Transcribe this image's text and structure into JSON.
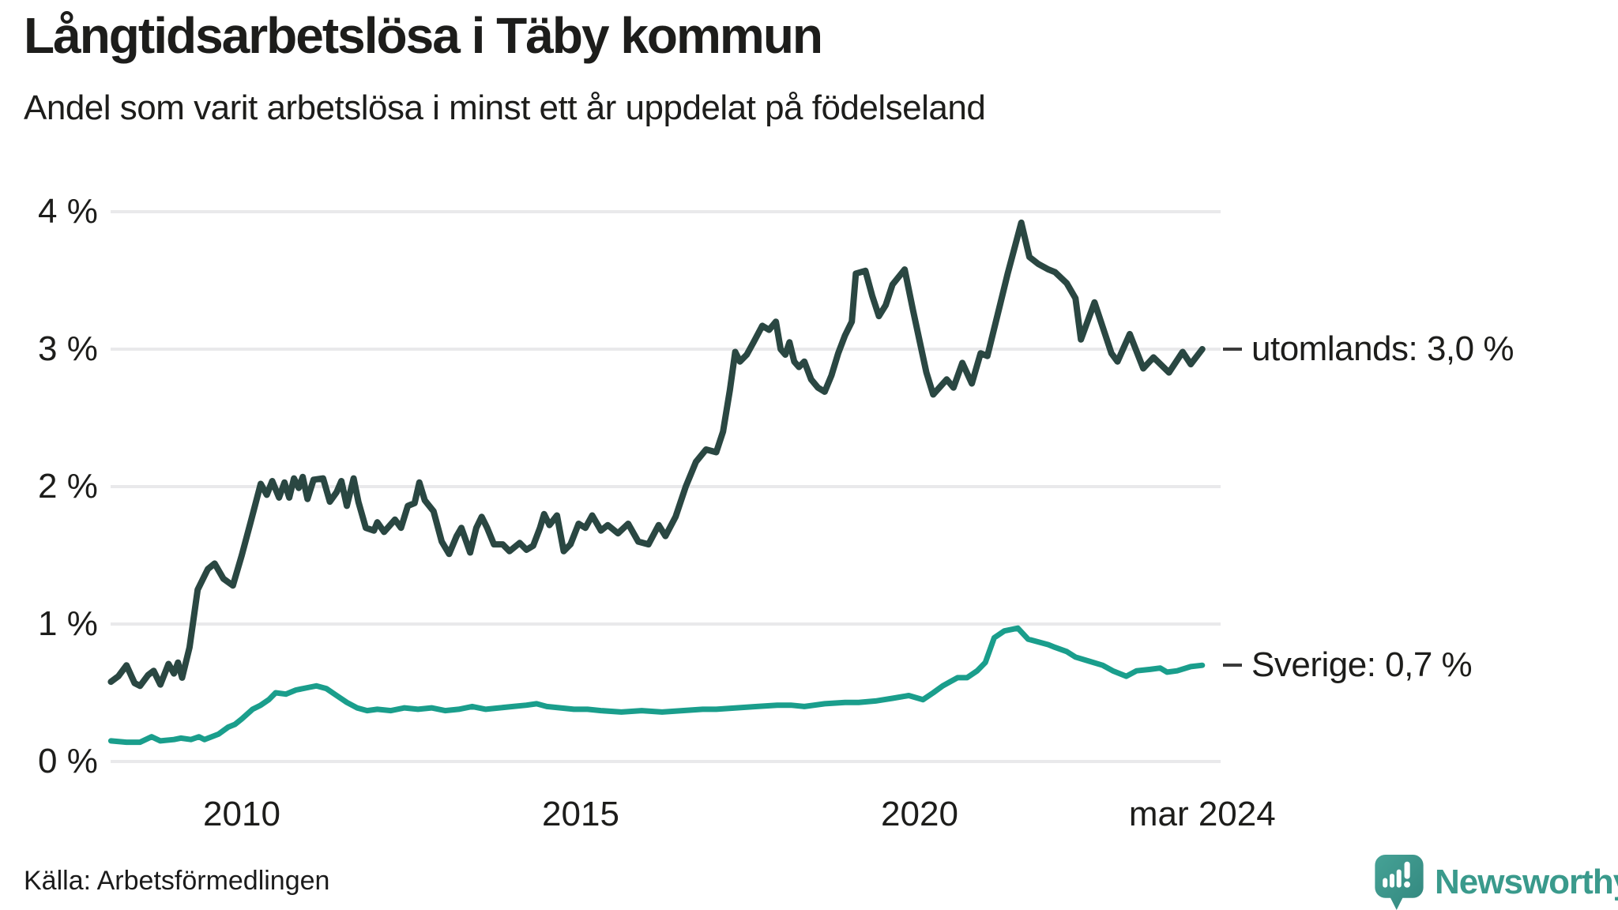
{
  "header": {
    "title": "Långtidsarbetslösa i Täby kommun",
    "subtitle": "Andel som varit arbetslösa i minst ett år uppdelat på födelseland"
  },
  "footer": {
    "source": "Källa: Arbetsförmedlingen",
    "brand": "Newsworthy"
  },
  "colors": {
    "background": "#ffffff",
    "text": "#1d1d1b",
    "gridline": "#e9e9eb",
    "utomlands_line": "#2a4742",
    "sverige_line": "#1a9e8c",
    "brand_teal": "#3a9a8c",
    "label_dash": "#3b3b3b"
  },
  "chart_data": {
    "type": "line",
    "title": "Långtidsarbetslösa i Täby kommun",
    "subtitle": "Andel som varit arbetslösa i minst ett år uppdelat på födelseland",
    "unit": "%",
    "grid": "horizontal",
    "legend_position": "right-end-labels",
    "xlim": [
      2008.05,
      2024.2
    ],
    "ylim": [
      0,
      4
    ],
    "x_axis": {
      "ticks": [
        "2010",
        "2015",
        "2020",
        "mar 2024"
      ],
      "tick_years": [
        2010,
        2015,
        2020,
        2024.17
      ]
    },
    "y_axis": {
      "ticks": [
        "4 %",
        "3 %",
        "2 %",
        "1 %",
        "0 %"
      ],
      "tick_values": [
        4,
        3,
        2,
        1,
        0
      ]
    },
    "series": [
      {
        "name": "utomlands",
        "label": "utomlands: 3,0 %",
        "last_value_label": "3,0 %",
        "color": "#2a4742",
        "x": [
          2008.07,
          2008.18,
          2008.3,
          2008.42,
          2008.5,
          2008.62,
          2008.7,
          2008.8,
          2008.92,
          2009.0,
          2009.06,
          2009.12,
          2009.23,
          2009.35,
          2009.5,
          2009.6,
          2009.73,
          2009.87,
          2010.0,
          2010.13,
          2010.28,
          2010.37,
          2010.45,
          2010.55,
          2010.63,
          2010.7,
          2010.77,
          2010.84,
          2010.9,
          2010.97,
          2011.06,
          2011.2,
          2011.3,
          2011.4,
          2011.47,
          2011.55,
          2011.65,
          2011.72,
          2011.83,
          2011.95,
          2012.0,
          2012.1,
          2012.26,
          2012.35,
          2012.45,
          2012.55,
          2012.62,
          2012.7,
          2012.83,
          2012.95,
          2013.06,
          2013.17,
          2013.24,
          2013.37,
          2013.46,
          2013.54,
          2013.62,
          2013.72,
          2013.85,
          2013.95,
          2014.1,
          2014.2,
          2014.3,
          2014.4,
          2014.46,
          2014.54,
          2014.65,
          2014.75,
          2014.85,
          2014.97,
          2015.07,
          2015.17,
          2015.3,
          2015.4,
          2015.55,
          2015.7,
          2015.85,
          2016.0,
          2016.15,
          2016.25,
          2016.4,
          2016.55,
          2016.7,
          2016.85,
          2017.0,
          2017.1,
          2017.2,
          2017.28,
          2017.35,
          2017.45,
          2017.55,
          2017.68,
          2017.78,
          2017.88,
          2017.95,
          2018.02,
          2018.08,
          2018.15,
          2018.22,
          2018.3,
          2018.4,
          2018.5,
          2018.6,
          2018.7,
          2018.8,
          2018.9,
          2019.0,
          2019.06,
          2019.2,
          2019.3,
          2019.4,
          2019.5,
          2019.6,
          2019.78,
          2019.9,
          2020.0,
          2020.1,
          2020.2,
          2020.4,
          2020.5,
          2020.63,
          2020.77,
          2020.9,
          2021.0,
          2021.15,
          2021.3,
          2021.5,
          2021.62,
          2021.75,
          2021.9,
          2022.0,
          2022.17,
          2022.3,
          2022.38,
          2022.58,
          2022.83,
          2022.92,
          2023.1,
          2023.3,
          2023.45,
          2023.68,
          2023.88,
          2024.0,
          2024.17
        ],
        "values": [
          0.58,
          0.62,
          0.7,
          0.57,
          0.55,
          0.63,
          0.66,
          0.56,
          0.71,
          0.64,
          0.72,
          0.61,
          0.83,
          1.25,
          1.4,
          1.44,
          1.33,
          1.28,
          1.5,
          1.74,
          2.02,
          1.94,
          2.04,
          1.92,
          2.03,
          1.92,
          2.06,
          1.99,
          2.07,
          1.91,
          2.05,
          2.06,
          1.89,
          1.96,
          2.04,
          1.86,
          2.06,
          1.89,
          1.7,
          1.68,
          1.74,
          1.67,
          1.76,
          1.7,
          1.86,
          1.88,
          2.03,
          1.9,
          1.82,
          1.6,
          1.51,
          1.64,
          1.7,
          1.52,
          1.7,
          1.78,
          1.7,
          1.58,
          1.58,
          1.53,
          1.59,
          1.54,
          1.57,
          1.7,
          1.8,
          1.72,
          1.79,
          1.53,
          1.58,
          1.73,
          1.7,
          1.79,
          1.68,
          1.72,
          1.66,
          1.73,
          1.6,
          1.58,
          1.72,
          1.64,
          1.78,
          2.0,
          2.18,
          2.27,
          2.25,
          2.4,
          2.7,
          2.98,
          2.91,
          2.96,
          3.05,
          3.17,
          3.14,
          3.2,
          3.0,
          2.96,
          3.05,
          2.91,
          2.87,
          2.91,
          2.78,
          2.72,
          2.69,
          2.81,
          2.97,
          3.1,
          3.2,
          3.55,
          3.57,
          3.39,
          3.24,
          3.32,
          3.47,
          3.58,
          3.29,
          3.06,
          2.83,
          2.67,
          2.78,
          2.72,
          2.9,
          2.75,
          2.97,
          2.95,
          3.25,
          3.55,
          3.92,
          3.67,
          3.62,
          3.58,
          3.56,
          3.48,
          3.37,
          3.07,
          3.34,
          2.97,
          2.91,
          3.11,
          2.86,
          2.94,
          2.83,
          2.98,
          2.89,
          3.0
        ]
      },
      {
        "name": "Sverige",
        "label": "Sverige: 0,7 %",
        "last_value_label": "0,7 %",
        "color": "#1a9e8c",
        "x": [
          2008.07,
          2008.3,
          2008.5,
          2008.67,
          2008.8,
          2009.0,
          2009.1,
          2009.25,
          2009.37,
          2009.45,
          2009.66,
          2009.8,
          2009.9,
          2010.0,
          2010.16,
          2010.28,
          2010.4,
          2010.5,
          2010.65,
          2010.8,
          2011.0,
          2011.1,
          2011.25,
          2011.4,
          2011.55,
          2011.7,
          2011.85,
          2012.0,
          2012.2,
          2012.4,
          2012.6,
          2012.8,
          2013.0,
          2013.2,
          2013.4,
          2013.6,
          2013.8,
          2014.0,
          2014.2,
          2014.35,
          2014.5,
          2014.7,
          2014.9,
          2015.1,
          2015.3,
          2015.6,
          2015.9,
          2016.2,
          2016.5,
          2016.8,
          2017.0,
          2017.3,
          2017.6,
          2017.9,
          2018.1,
          2018.3,
          2018.6,
          2018.9,
          2019.1,
          2019.35,
          2019.6,
          2019.84,
          2020.05,
          2020.2,
          2020.34,
          2020.45,
          2020.56,
          2020.7,
          2020.85,
          2020.97,
          2021.1,
          2021.25,
          2021.45,
          2021.6,
          2021.75,
          2021.9,
          2022.0,
          2022.17,
          2022.3,
          2022.5,
          2022.7,
          2022.85,
          2023.05,
          2023.2,
          2023.4,
          2023.55,
          2023.65,
          2023.8,
          2024.0,
          2024.17
        ],
        "values": [
          0.15,
          0.14,
          0.14,
          0.18,
          0.15,
          0.16,
          0.17,
          0.16,
          0.18,
          0.16,
          0.2,
          0.25,
          0.27,
          0.31,
          0.38,
          0.41,
          0.45,
          0.5,
          0.49,
          0.52,
          0.54,
          0.55,
          0.53,
          0.48,
          0.43,
          0.39,
          0.37,
          0.38,
          0.37,
          0.39,
          0.38,
          0.39,
          0.37,
          0.38,
          0.4,
          0.38,
          0.39,
          0.4,
          0.41,
          0.42,
          0.4,
          0.39,
          0.38,
          0.38,
          0.37,
          0.36,
          0.37,
          0.36,
          0.37,
          0.38,
          0.38,
          0.39,
          0.4,
          0.41,
          0.41,
          0.4,
          0.42,
          0.43,
          0.43,
          0.44,
          0.46,
          0.48,
          0.45,
          0.5,
          0.55,
          0.58,
          0.61,
          0.61,
          0.66,
          0.72,
          0.9,
          0.95,
          0.97,
          0.89,
          0.87,
          0.85,
          0.83,
          0.8,
          0.76,
          0.73,
          0.7,
          0.66,
          0.62,
          0.66,
          0.67,
          0.68,
          0.65,
          0.66,
          0.69,
          0.7
        ]
      }
    ]
  }
}
